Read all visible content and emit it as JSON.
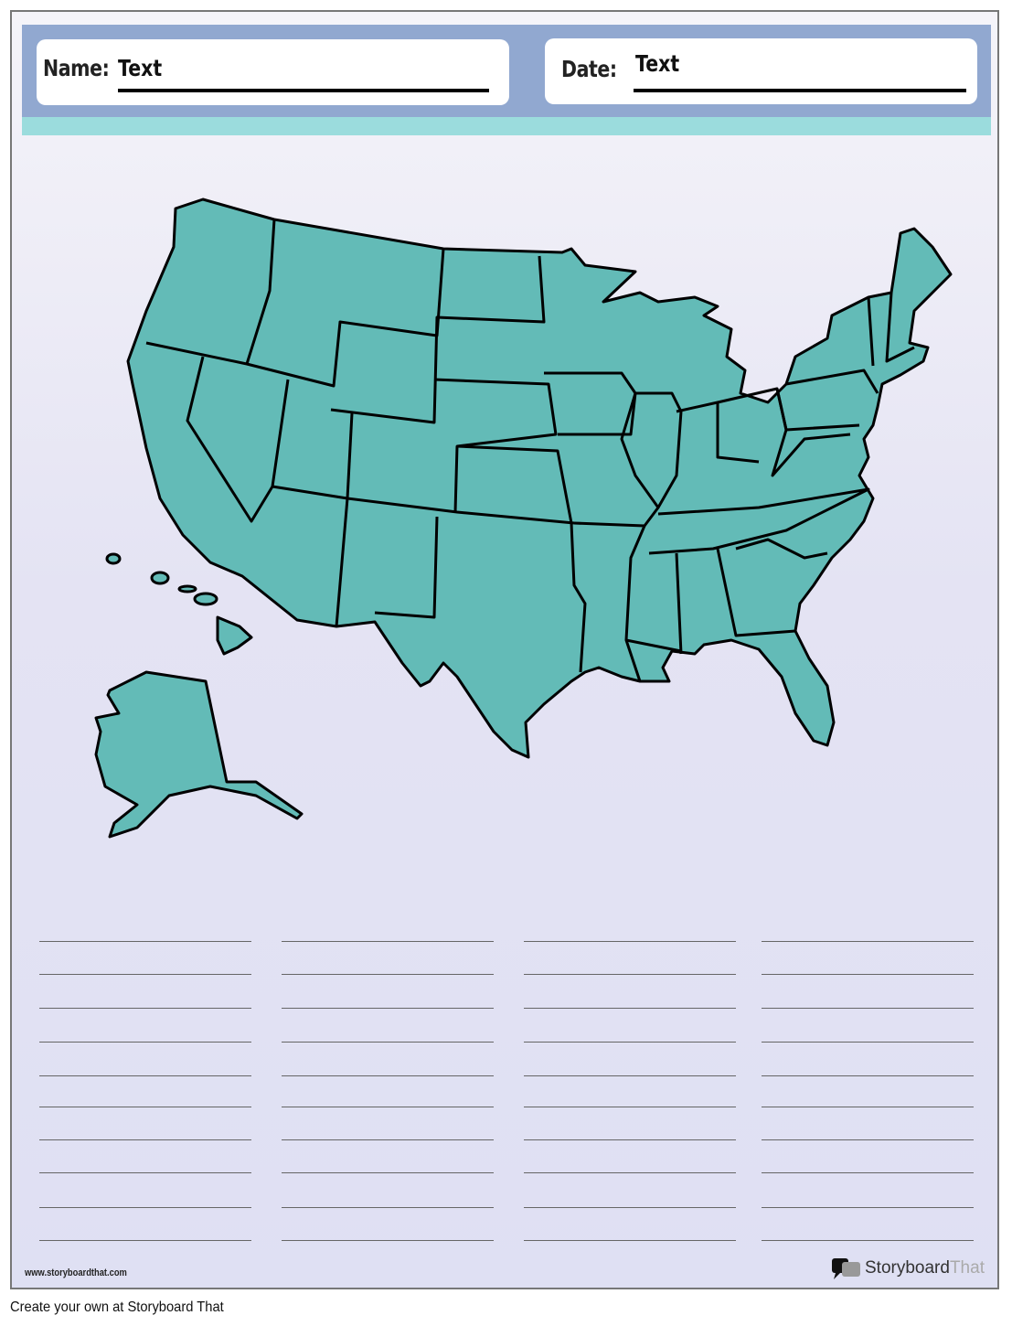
{
  "header": {
    "name_label": "Name:",
    "name_value": "Text",
    "date_label": "Date:",
    "date_value": "Text"
  },
  "colors": {
    "header_bg": "#91a8d0",
    "teal_band": "#9bdcdd",
    "map_fill": "#63bbb7",
    "outline": "#000000"
  },
  "footer": {
    "url": "www.storyboardthat.com",
    "logo_brand": "Storyboard",
    "logo_suffix": "That",
    "credit": "Create your own at Storyboard That"
  }
}
